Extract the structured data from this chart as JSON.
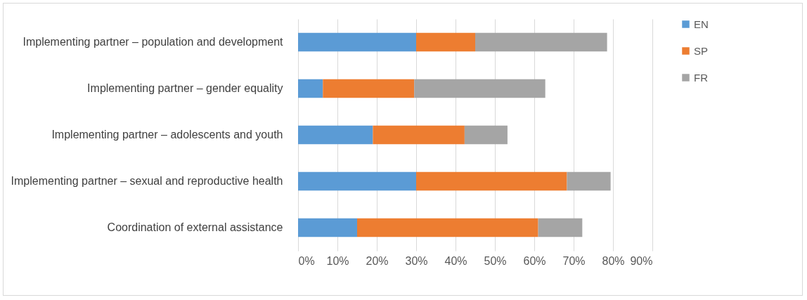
{
  "chart_data": {
    "type": "bar",
    "orientation": "horizontal",
    "stacked": true,
    "categories": [
      "Implementing partner – population and development",
      "Implementing partner – gender equality",
      "Implementing partner – adolescents and youth",
      "Implementing partner – sexual and reproductive health",
      "Coordination of external assistance"
    ],
    "series": [
      {
        "name": "EN",
        "color": "#5b9bd5",
        "values": [
          30,
          6.3,
          19,
          30,
          15
        ]
      },
      {
        "name": "SP",
        "color": "#ed7d31",
        "values": [
          15,
          23.2,
          23.3,
          38.3,
          46
        ]
      },
      {
        "name": "FR",
        "color": "#a5a5a5",
        "values": [
          33.5,
          33.3,
          10.9,
          11.1,
          11.2
        ]
      }
    ],
    "xlim": [
      0,
      90
    ],
    "xticks": [
      {
        "value": 0,
        "label": "0%"
      },
      {
        "value": 10,
        "label": "10%"
      },
      {
        "value": 20,
        "label": "20%"
      },
      {
        "value": 30,
        "label": "30%"
      },
      {
        "value": 40,
        "label": "40%"
      },
      {
        "value": 50,
        "label": "50%"
      },
      {
        "value": 60,
        "label": "60%"
      },
      {
        "value": 70,
        "label": "70%"
      },
      {
        "value": 80,
        "label": "80%"
      },
      {
        "value": 90,
        "label": "90%"
      }
    ],
    "grid": "x",
    "legend": "right"
  }
}
